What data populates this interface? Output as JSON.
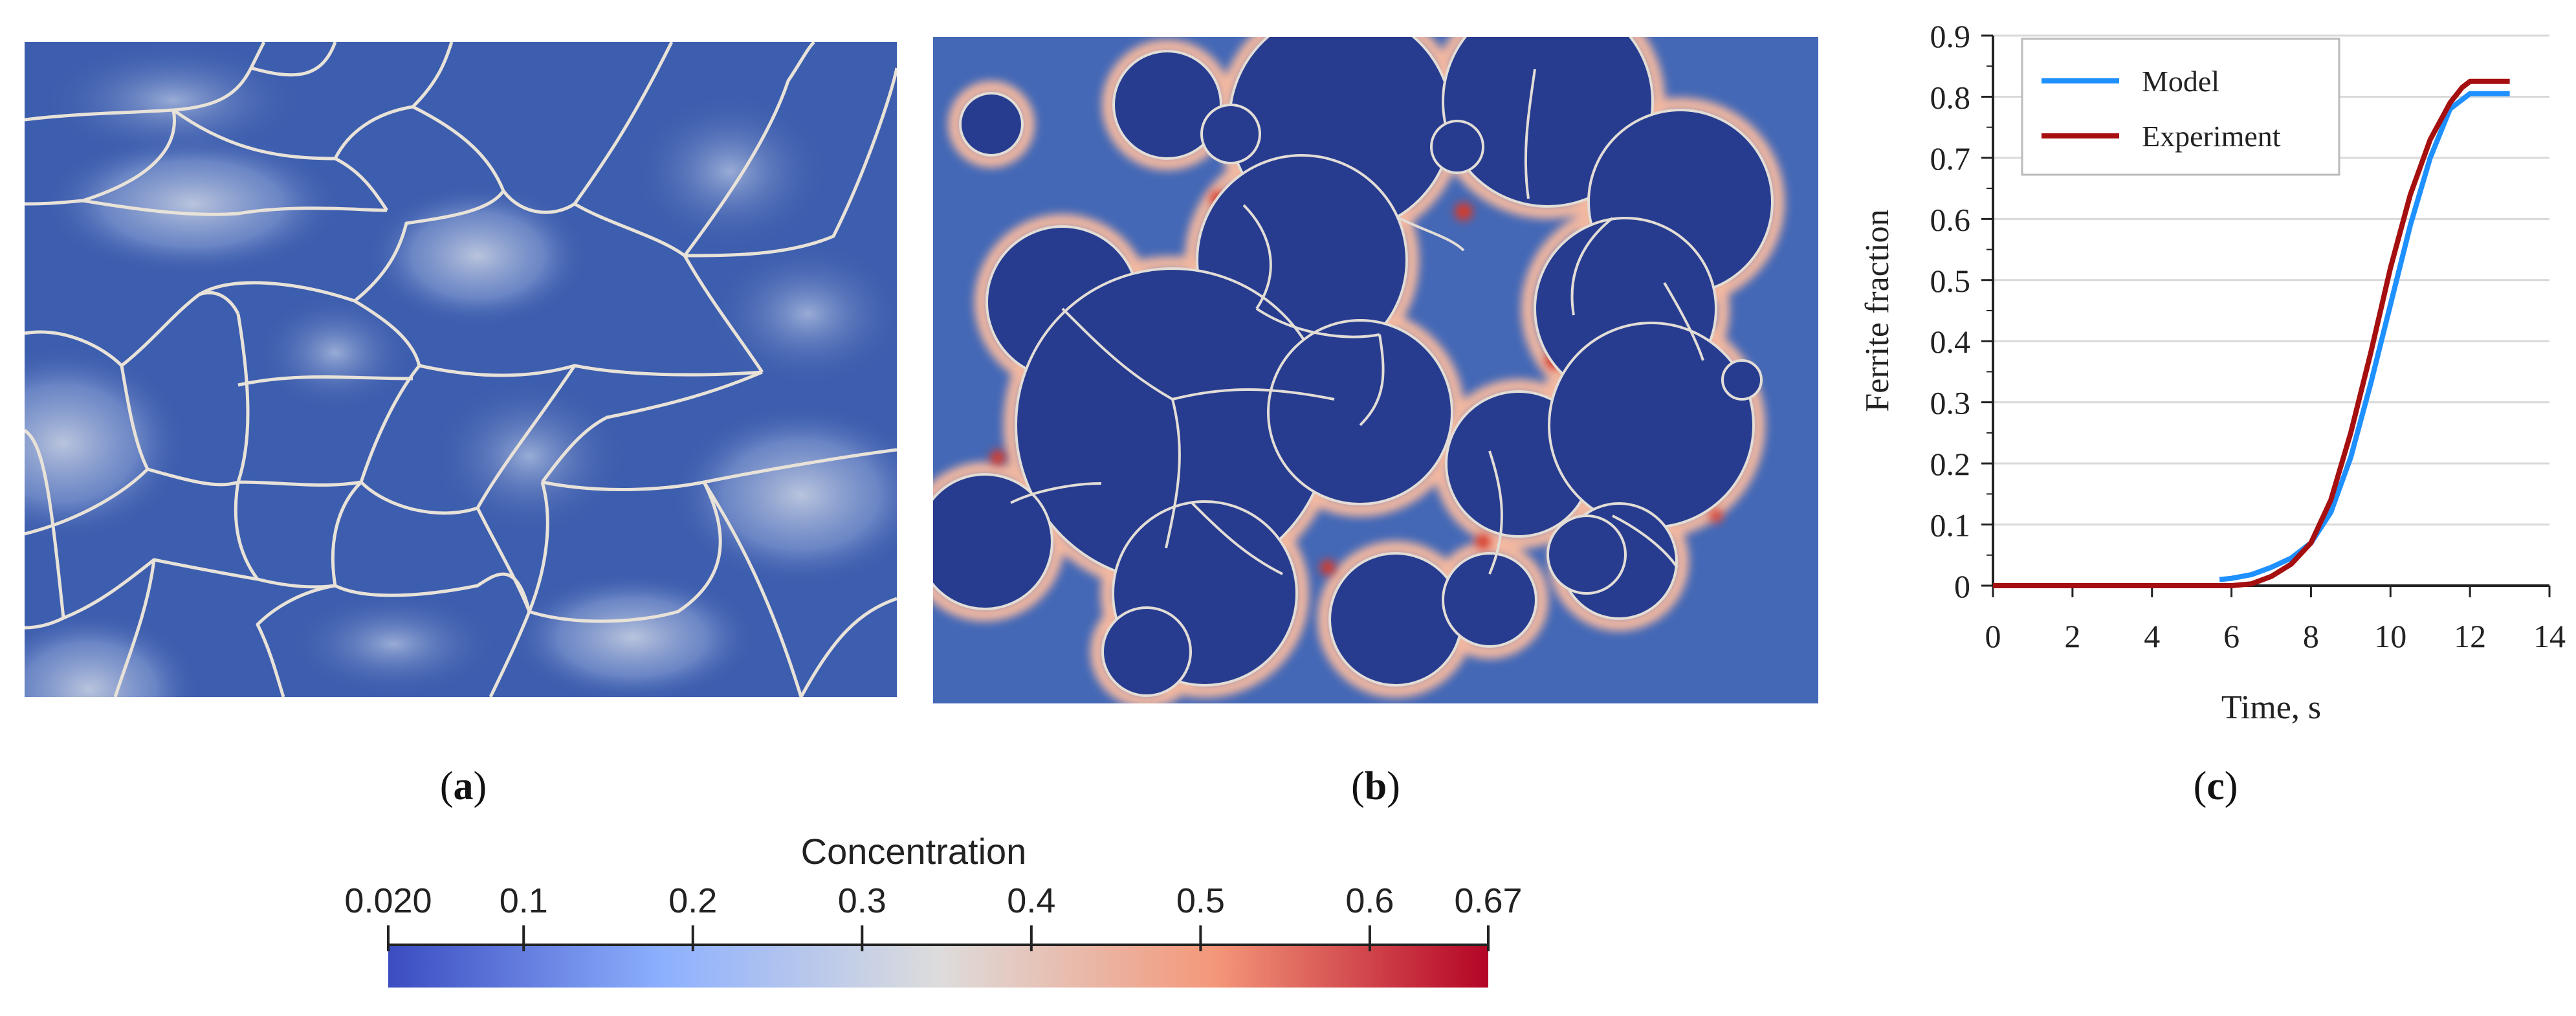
{
  "captions": {
    "a": "a",
    "b": "b",
    "c": "c"
  },
  "colorbar": {
    "title": "Concentration",
    "ticks": [
      {
        "value": 0.02,
        "label": "0.020"
      },
      {
        "value": 0.1,
        "label": "0.1"
      },
      {
        "value": 0.2,
        "label": "0.2"
      },
      {
        "value": 0.3,
        "label": "0.3"
      },
      {
        "value": 0.4,
        "label": "0.4"
      },
      {
        "value": 0.5,
        "label": "0.5"
      },
      {
        "value": 0.6,
        "label": "0.6"
      },
      {
        "value": 0.67,
        "label": "0.67"
      }
    ],
    "range": [
      0.02,
      0.67
    ],
    "colors": [
      "#3b4cc0",
      "#8db0fe",
      "#dddcdc",
      "#f4987a",
      "#b40426"
    ]
  },
  "chart_data": {
    "type": "line",
    "xlabel": "Time, s",
    "ylabel": "Ferrite fraction",
    "xlim": [
      0,
      14
    ],
    "ylim": [
      0,
      0.9
    ],
    "xticks": [
      0,
      2,
      4,
      6,
      8,
      10,
      12,
      14
    ],
    "yticks": [
      0,
      0.1,
      0.2,
      0.3,
      0.4,
      0.5,
      0.6,
      0.7,
      0.8,
      0.9
    ],
    "grid": true,
    "legend_position": "top-left",
    "series": [
      {
        "name": "Model",
        "color": "#1e90ff",
        "x": [
          5.7,
          6.0,
          6.5,
          7.0,
          7.5,
          8.0,
          8.5,
          9.0,
          9.5,
          10.0,
          10.5,
          11.0,
          11.5,
          12.0,
          12.5,
          13.0
        ],
        "y": [
          0.01,
          0.012,
          0.018,
          0.03,
          0.045,
          0.07,
          0.12,
          0.21,
          0.33,
          0.46,
          0.59,
          0.7,
          0.78,
          0.805,
          0.805,
          0.805
        ]
      },
      {
        "name": "Experiment",
        "color": "#a50f0f",
        "x": [
          0,
          2,
          4,
          5,
          6,
          6.5,
          7.0,
          7.5,
          8.0,
          8.5,
          9.0,
          9.5,
          10.0,
          10.5,
          11.0,
          11.5,
          11.8,
          12.0,
          12.5,
          13.0
        ],
        "y": [
          0,
          0,
          0,
          0,
          0.0,
          0.003,
          0.015,
          0.035,
          0.07,
          0.14,
          0.25,
          0.38,
          0.52,
          0.64,
          0.73,
          0.79,
          0.815,
          0.825,
          0.825,
          0.825
        ]
      }
    ]
  }
}
